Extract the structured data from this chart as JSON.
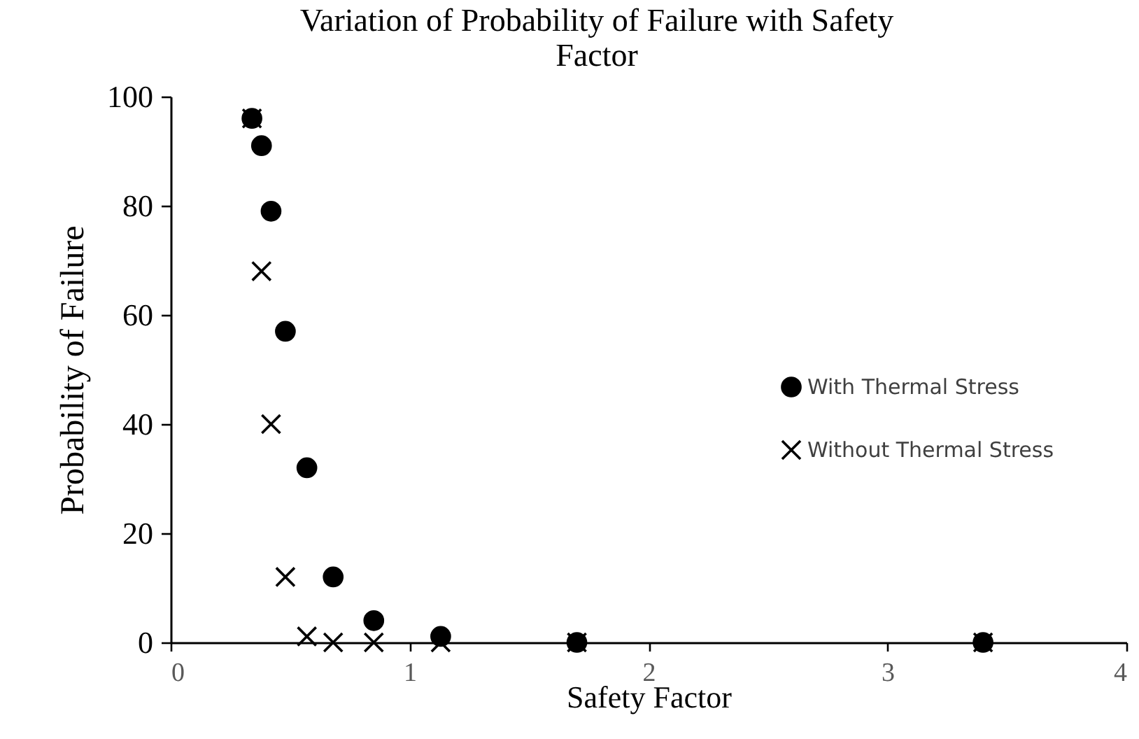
{
  "chart_data": {
    "type": "scatter",
    "title": "Variation of Probability of Failure with Safety Factor",
    "xlabel": "Safety Factor",
    "ylabel": "Probability of Failure",
    "x": [
      0.34,
      0.38,
      0.42,
      0.48,
      0.57,
      0.68,
      0.85,
      1.13,
      1.7,
      3.4
    ],
    "series": [
      {
        "name": "With Thermal Stress",
        "color": "#000000",
        "marker": "circle",
        "values": [
          96,
          91,
          79,
          57,
          32,
          12,
          4,
          1.1,
          0,
          0
        ]
      },
      {
        "name": "Without Thermal Stress",
        "color": "#000000",
        "marker": "cross",
        "values": [
          96,
          68,
          40,
          12,
          1.1,
          0,
          0,
          0,
          0,
          0
        ]
      }
    ],
    "xlim": [
      0,
      4
    ],
    "xticks": [
      0,
      1,
      2,
      3,
      4
    ],
    "ylim": [
      0,
      100
    ],
    "yticks": [
      0,
      20,
      40,
      60,
      80,
      100
    ],
    "grid": false,
    "legend": "right"
  }
}
